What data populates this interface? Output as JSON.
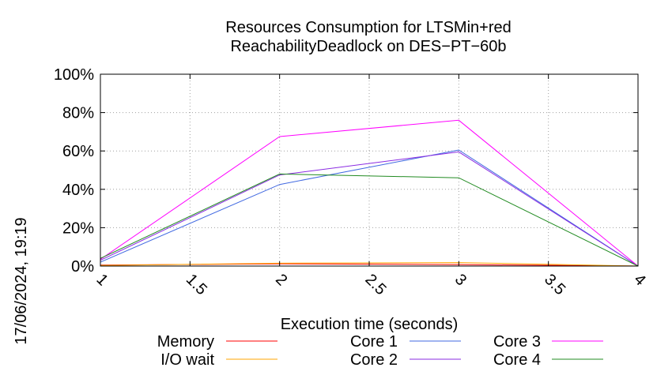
{
  "chart_data": {
    "type": "line",
    "title": [
      "Resources Consumption for LTSMin+red",
      "ReachabilityDeadlock on DES−PT−60b"
    ],
    "xlabel": "Execution time (seconds)",
    "ylabel": "",
    "xlim": [
      1,
      4
    ],
    "ylim": [
      0,
      100
    ],
    "x_ticks": [
      {
        "value": 1,
        "label": "1"
      },
      {
        "value": 1.5,
        "label": "1.5"
      },
      {
        "value": 2,
        "label": "2"
      },
      {
        "value": 2.5,
        "label": "2.5"
      },
      {
        "value": 3,
        "label": "3"
      },
      {
        "value": 3.5,
        "label": "3.5"
      },
      {
        "value": 4,
        "label": "4"
      }
    ],
    "y_ticks": [
      {
        "value": 0,
        "label": "0%"
      },
      {
        "value": 20,
        "label": "20%"
      },
      {
        "value": 40,
        "label": "40%"
      },
      {
        "value": 60,
        "label": "60%"
      },
      {
        "value": 80,
        "label": "80%"
      },
      {
        "value": 100,
        "label": "100%"
      }
    ],
    "grid": true,
    "legend_position": "bottom",
    "series": [
      {
        "name": "Memory",
        "color": "#ff0000",
        "x": [
          1,
          2,
          3,
          4
        ],
        "y": [
          0.5,
          1.2,
          0.8,
          0
        ]
      },
      {
        "name": "I/O wait",
        "color": "#ffa500",
        "x": [
          1,
          2,
          3,
          4
        ],
        "y": [
          0.3,
          1.5,
          1.8,
          0
        ]
      },
      {
        "name": "Core 1",
        "color": "#4169e1",
        "x": [
          1,
          2,
          3,
          4
        ],
        "y": [
          2,
          42.5,
          60.5,
          0
        ]
      },
      {
        "name": "Core 2",
        "color": "#8a2be2",
        "x": [
          1,
          2,
          3,
          4
        ],
        "y": [
          3,
          47.5,
          59.5,
          0
        ]
      },
      {
        "name": "Core 3",
        "color": "#ff00ff",
        "x": [
          1,
          2,
          3,
          4
        ],
        "y": [
          3.5,
          67.5,
          76,
          0
        ]
      },
      {
        "name": "Core 4",
        "color": "#228b22",
        "x": [
          1,
          2,
          3,
          4
        ],
        "y": [
          4,
          48,
          46,
          0
        ]
      }
    ],
    "timestamp": "17/06/2024, 19:19"
  }
}
